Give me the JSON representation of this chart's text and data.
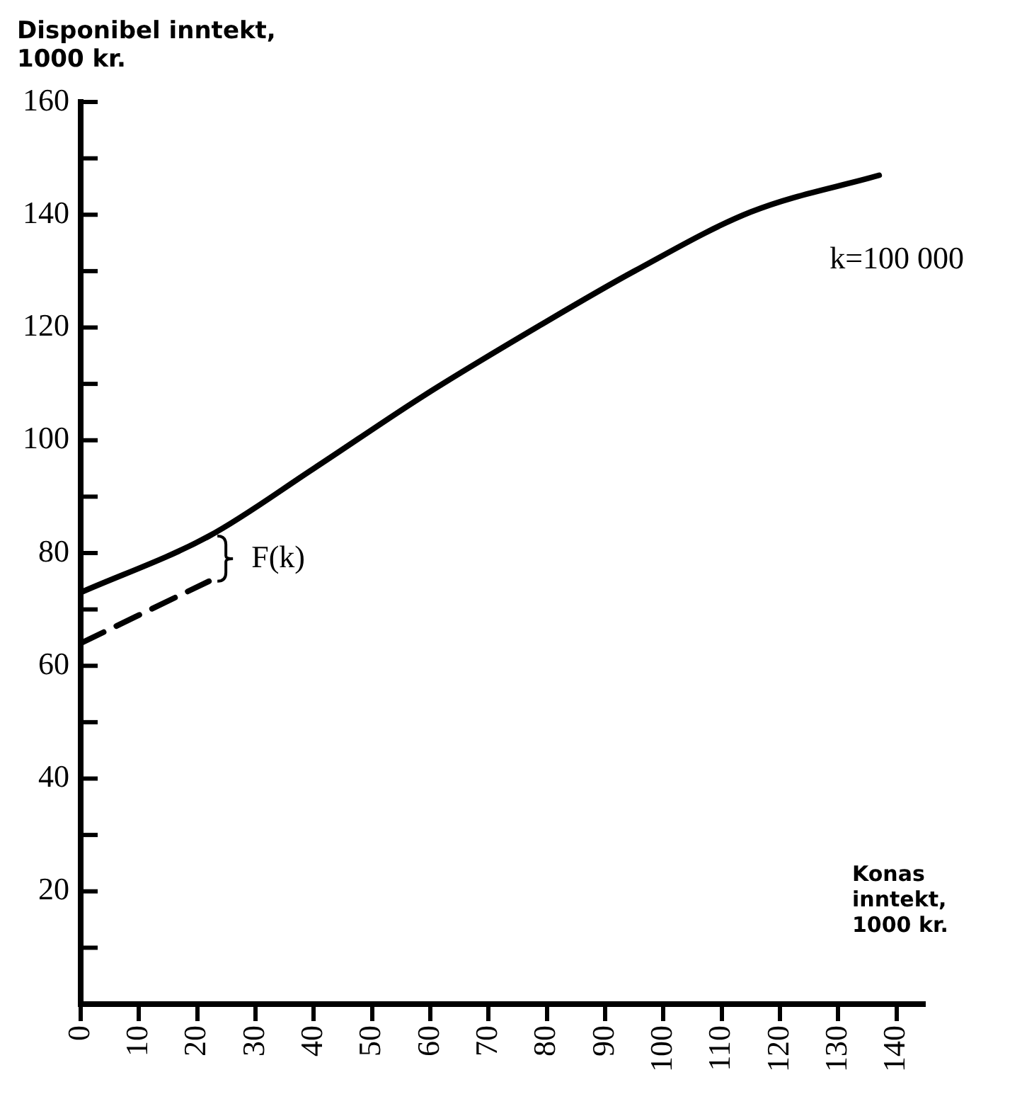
{
  "chart_data": {
    "type": "line",
    "ylabel": "Disponibel inntekt, 1000 kr.",
    "xlabel": "Konas inntekt, 1000 kr.",
    "xlim": [
      0,
      145
    ],
    "xticks": [
      0,
      10,
      20,
      30,
      40,
      50,
      60,
      70,
      80,
      90,
      100,
      110,
      120,
      130,
      140
    ],
    "ylim": [
      0,
      160
    ],
    "yticks": [
      {
        "value": 0,
        "label": null
      },
      {
        "value": 10,
        "label": null
      },
      20,
      {
        "value": 30,
        "label": null
      },
      40,
      {
        "value": 50,
        "label": null
      },
      60,
      {
        "value": 70,
        "label": null
      },
      80,
      {
        "value": 90,
        "label": null
      },
      100,
      {
        "value": 110,
        "label": null
      },
      120,
      {
        "value": 130,
        "label": null
      },
      140,
      {
        "value": 150,
        "label": null
      },
      160
    ],
    "series": [
      {
        "name": "k=100 000",
        "color": "#000000",
        "line_style": "solid",
        "x": [
          0,
          22,
          40,
          59,
          79,
          95,
          115,
          137
        ],
        "values": [
          73,
          83,
          95,
          108,
          120.5,
          130,
          140.5,
          147
        ]
      },
      {
        "color": "#000000",
        "line_style": "dashed",
        "x": [
          0,
          22
        ],
        "values": [
          64,
          75
        ]
      }
    ],
    "annotations": [
      "F(k)"
    ],
    "legend": false,
    "marker": "none"
  }
}
